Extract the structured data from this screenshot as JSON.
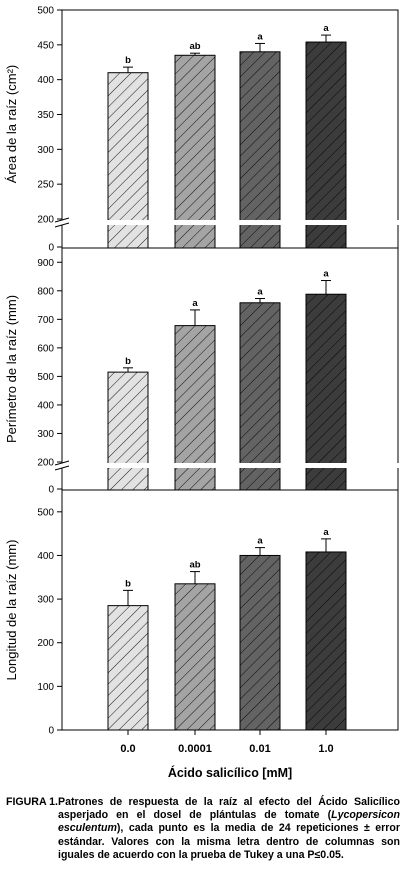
{
  "figure": {
    "treatments": [
      "0.0",
      "0.0001",
      "0.01",
      "1.0"
    ],
    "x_axis_label": "Ácido salicílico [mM]",
    "bar_colors": [
      "#e2e2e2",
      "#a4a4a4",
      "#636363",
      "#3c3c3c"
    ]
  },
  "chart_data": [
    {
      "type": "bar",
      "ylabel": "Área de la raíz (cm²)",
      "categories": [
        "0.0",
        "0.0001",
        "0.01",
        "1.0"
      ],
      "values": [
        410,
        435,
        440,
        454
      ],
      "errors": [
        8,
        3,
        12,
        10
      ],
      "letters": [
        "b",
        "ab",
        "a",
        "a"
      ],
      "ylim": [
        0,
        500
      ],
      "axis_break": [
        0,
        200
      ],
      "yticks": [
        "0",
        "200",
        "250",
        "300",
        "350",
        "400",
        "450",
        "500"
      ]
    },
    {
      "type": "bar",
      "ylabel": "Perímetro de la raíz (mm)",
      "categories": [
        "0.0",
        "0.0001",
        "0.01",
        "1.0"
      ],
      "values": [
        515,
        678,
        758,
        788
      ],
      "errors": [
        15,
        55,
        15,
        48
      ],
      "letters": [
        "b",
        "a",
        "a",
        "a"
      ],
      "ylim": [
        0,
        950
      ],
      "axis_break": [
        0,
        200
      ],
      "yticks": [
        "0",
        "200",
        "300",
        "400",
        "500",
        "600",
        "700",
        "800",
        "900"
      ]
    },
    {
      "type": "bar",
      "ylabel": "Longitud de la raíz (mm)",
      "categories": [
        "0.0",
        "0.0001",
        "0.01",
        "1.0"
      ],
      "values": [
        285,
        335,
        400,
        408
      ],
      "errors": [
        35,
        28,
        18,
        30
      ],
      "letters": [
        "b",
        "ab",
        "a",
        "a"
      ],
      "ylim": [
        0,
        550
      ],
      "axis_break": null,
      "yticks": [
        "0",
        "100",
        "200",
        "300",
        "400",
        "500"
      ]
    }
  ],
  "caption": {
    "label": "FIGURA 1.",
    "text_before": "Patrones de respuesta de la raíz al efecto del Ácido Salicílico asperjado en el dosel de plántulas de tomate (",
    "species": "Lycopersicon esculentum",
    "text_after": "), cada punto es la media de 24 repeticiones ± error estándar. Valores con la misma letra dentro de columnas son iguales de acuerdo con la prueba de Tukey a una P≤0.05."
  }
}
